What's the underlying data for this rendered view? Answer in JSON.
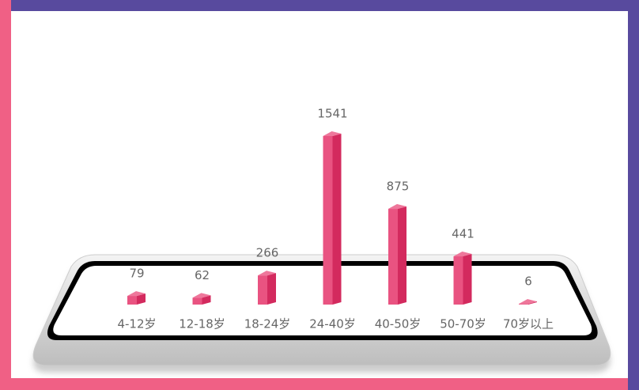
{
  "chart_data": {
    "type": "bar3d",
    "categories": [
      "4-12岁",
      "12-18岁",
      "18-24岁",
      "24-40岁",
      "40-50岁",
      "50-70岁",
      "70岁以上"
    ],
    "values": [
      79,
      62,
      266,
      1541,
      875,
      441,
      6
    ],
    "color": "#e52e66"
  }
}
